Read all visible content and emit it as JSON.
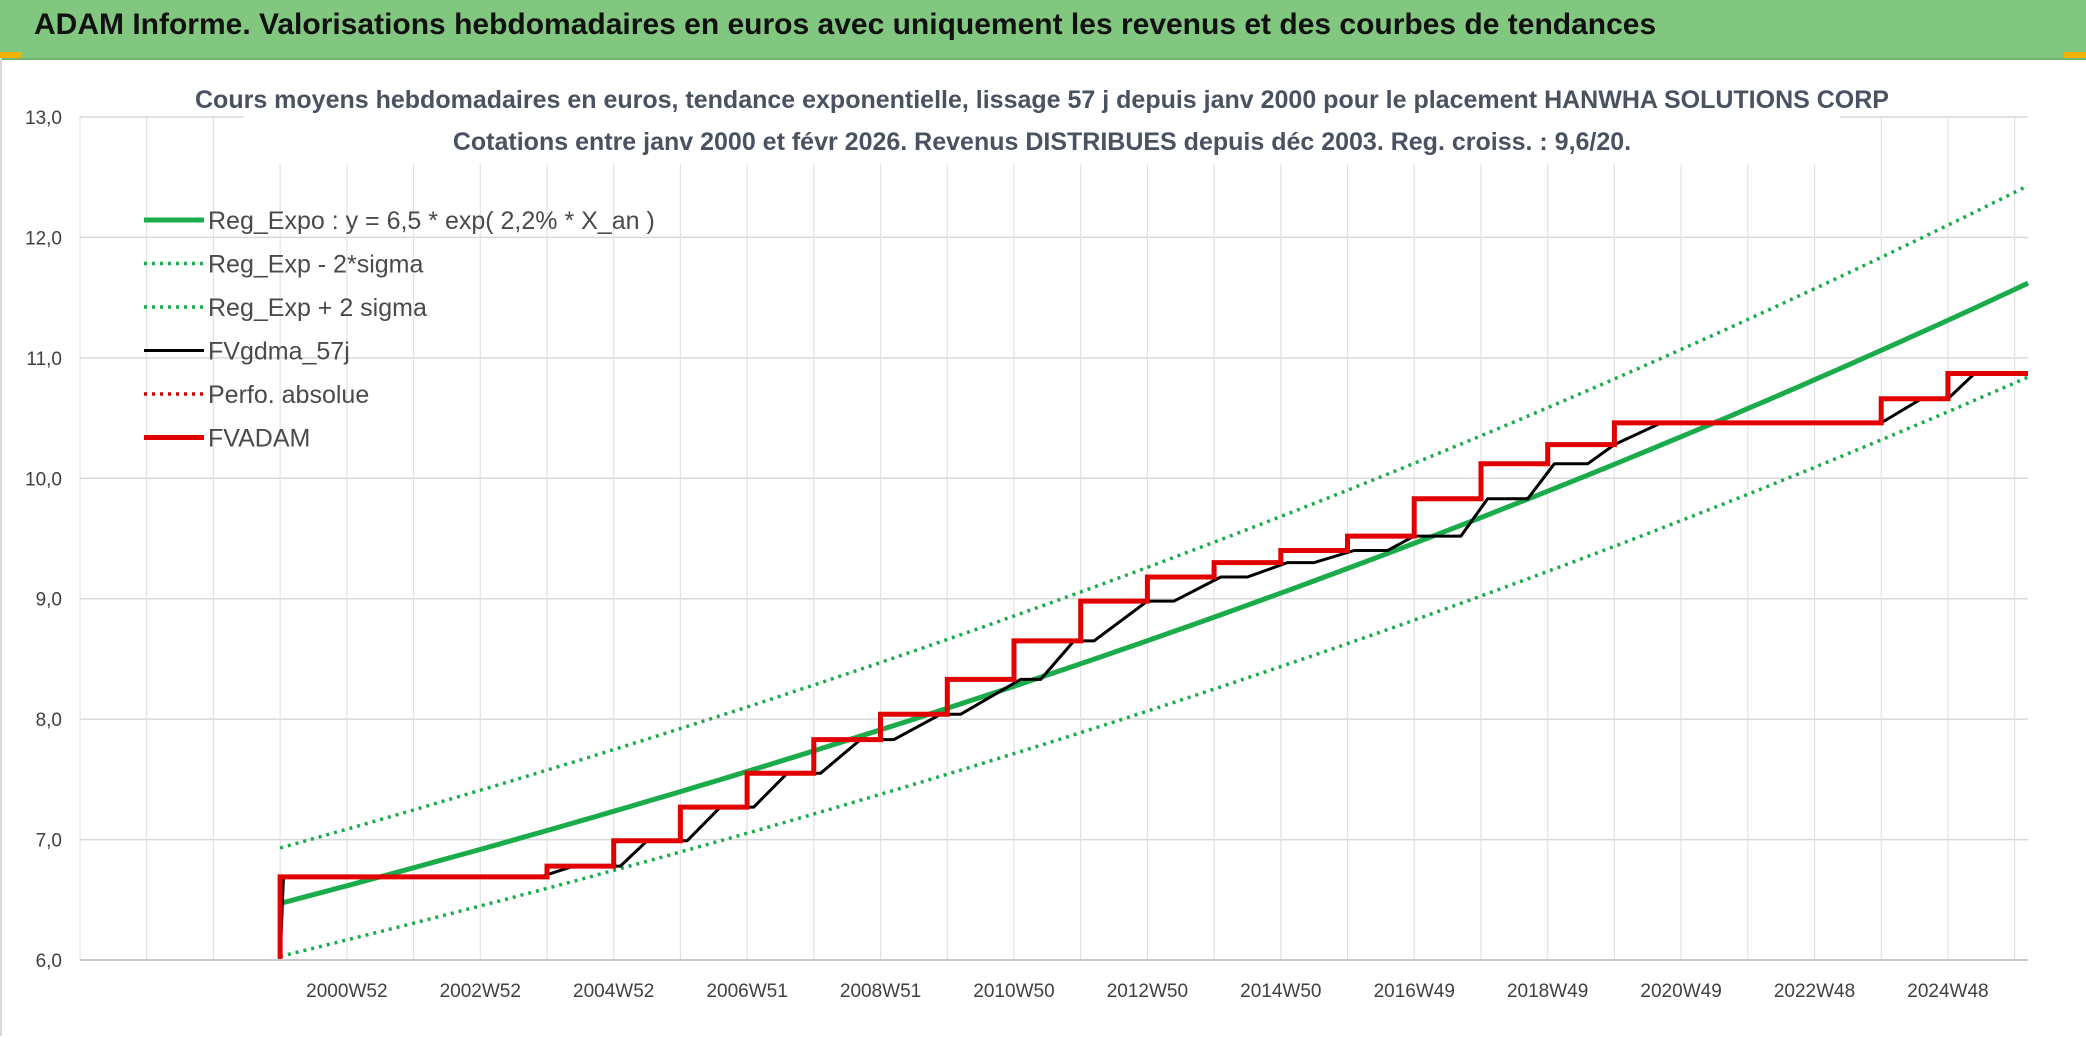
{
  "header": {
    "title": "ADAM Informe. Valorisations hebdomadaires en euros avec uniquement les revenus et des courbes de tendances"
  },
  "chart_data": {
    "type": "line",
    "title": "Cours moyens hebdomadaires en euros, tendance exponentielle, lissage 57 j depuis janv 2000 pour le placement HANWHA SOLUTIONS CORP",
    "subtitle": "Cotations entre janv 2000 et févr 2026. Revenus DISTRIBUES depuis déc 2003. Reg. croiss. : 9,6/20.",
    "xlabel": "",
    "ylabel": "",
    "ylim": [
      6.0,
      13.0
    ],
    "yticks": [
      "6,0",
      "7,0",
      "8,0",
      "9,0",
      "10,0",
      "11,0",
      "12,0",
      "13,0"
    ],
    "xlim": [
      1997.0,
      2026.2
    ],
    "xticks": [
      {
        "label": "2000W52",
        "x": 2001.0
      },
      {
        "label": "2002W52",
        "x": 2003.0
      },
      {
        "label": "2004W52",
        "x": 2005.0
      },
      {
        "label": "2006W51",
        "x": 2007.0
      },
      {
        "label": "2008W51",
        "x": 2009.0
      },
      {
        "label": "2010W50",
        "x": 2011.0
      },
      {
        "label": "2012W50",
        "x": 2013.0
      },
      {
        "label": "2014W50",
        "x": 2015.0
      },
      {
        "label": "2016W49",
        "x": 2017.0
      },
      {
        "label": "2018W49",
        "x": 2019.0
      },
      {
        "label": "2020W49",
        "x": 2021.0
      },
      {
        "label": "2022W48",
        "x": 2023.0
      },
      {
        "label": "2024W48",
        "x": 2025.0
      }
    ],
    "grid": true,
    "legend_position": "top-left",
    "series": [
      {
        "name": "Reg_Expo : y = 6,5 * exp( 2,2% *  X_an )",
        "color": "#1aac4a",
        "style": "solid-thick",
        "x": [
          2000.0,
          2026.2
        ],
        "y": [
          6.47,
          11.62
        ]
      },
      {
        "name": "Reg_Exp - 2*sigma",
        "color": "#1aac4a",
        "style": "dotted",
        "x": [
          2000.0,
          2026.2
        ],
        "y": [
          6.03,
          10.84
        ]
      },
      {
        "name": "Reg_Exp + 2 sigma",
        "color": "#1aac4a",
        "style": "dotted",
        "x": [
          2000.0,
          2026.2
        ],
        "y": [
          6.93,
          12.43
        ]
      },
      {
        "name": "FVgdma_57j",
        "color": "#000000",
        "style": "solid",
        "x": [
          2000.0,
          2000.05,
          2003.9,
          2004.4,
          2005.1,
          2005.5,
          2006.1,
          2006.6,
          2007.1,
          2007.6,
          2008.1,
          2008.7,
          2009.2,
          2009.9,
          2010.2,
          2011.1,
          2011.4,
          2011.9,
          2012.2,
          2013.0,
          2013.4,
          2014.1,
          2014.5,
          2015.1,
          2015.5,
          2016.1,
          2016.6,
          2017.0,
          2017.7,
          2018.1,
          2018.7,
          2019.1,
          2019.6,
          2020.0,
          2020.7,
          2024.0,
          2024.6,
          2025.0,
          2025.4,
          2026.2
        ],
        "y": [
          6.01,
          6.69,
          6.69,
          6.78,
          6.78,
          6.99,
          6.99,
          7.27,
          7.27,
          7.55,
          7.55,
          7.83,
          7.83,
          8.04,
          8.04,
          8.33,
          8.33,
          8.65,
          8.65,
          8.98,
          8.98,
          9.18,
          9.18,
          9.3,
          9.3,
          9.4,
          9.4,
          9.52,
          9.52,
          9.83,
          9.83,
          10.12,
          10.12,
          10.28,
          10.46,
          10.46,
          10.66,
          10.66,
          10.87,
          10.87
        ]
      },
      {
        "name": "Perfo. absolue",
        "color": "#d00000",
        "style": "dotted",
        "x": [],
        "y": []
      },
      {
        "name": "FVADAM",
        "color": "#e30000",
        "style": "solid-thick",
        "x": [
          2000.0,
          2000.0,
          2004.0,
          2004.0,
          2005.0,
          2005.0,
          2006.0,
          2006.0,
          2007.0,
          2007.0,
          2008.0,
          2008.0,
          2009.0,
          2009.0,
          2010.0,
          2010.0,
          2011.0,
          2011.0,
          2012.0,
          2012.0,
          2013.0,
          2013.0,
          2014.0,
          2014.0,
          2015.0,
          2015.0,
          2016.0,
          2016.0,
          2017.0,
          2017.0,
          2018.0,
          2018.0,
          2019.0,
          2019.0,
          2020.0,
          2020.0,
          2024.0,
          2024.0,
          2025.0,
          2025.0,
          2026.2
        ],
        "y": [
          6.01,
          6.69,
          6.69,
          6.78,
          6.78,
          6.99,
          6.99,
          7.27,
          7.27,
          7.55,
          7.55,
          7.83,
          7.83,
          8.04,
          8.04,
          8.33,
          8.33,
          8.65,
          8.65,
          8.98,
          8.98,
          9.18,
          9.18,
          9.3,
          9.3,
          9.4,
          9.4,
          9.52,
          9.52,
          9.83,
          9.83,
          10.12,
          10.12,
          10.28,
          10.28,
          10.46,
          10.46,
          10.66,
          10.66,
          10.87,
          10.87
        ]
      }
    ]
  }
}
